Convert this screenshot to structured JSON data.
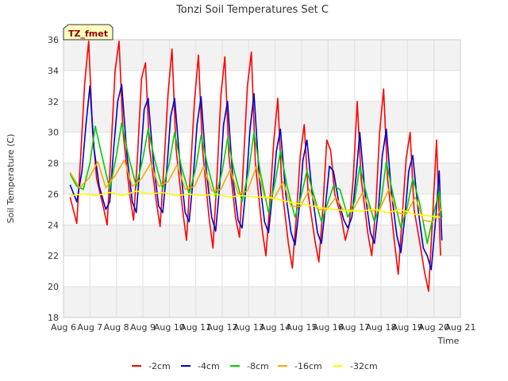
{
  "chart_data": {
    "type": "line",
    "title": "Tonzi Soil Temperatures Set C",
    "xlabel": "Time",
    "ylabel": "Soil Temperature (C)",
    "badge": "TZ_fmet",
    "xlim": [
      6,
      21
    ],
    "ylim": [
      18,
      36
    ],
    "x_ticks": [
      {
        "value": 6,
        "label": "Aug 6"
      },
      {
        "value": 7,
        "label": "Aug 7"
      },
      {
        "value": 8,
        "label": "Aug 8"
      },
      {
        "value": 9,
        "label": "Aug 9"
      },
      {
        "value": 10,
        "label": "Aug 10"
      },
      {
        "value": 11,
        "label": "Aug 11"
      },
      {
        "value": 12,
        "label": "Aug 12"
      },
      {
        "value": 13,
        "label": "Aug 13"
      },
      {
        "value": 14,
        "label": "Aug 14"
      },
      {
        "value": 15,
        "label": "Aug 15"
      },
      {
        "value": 16,
        "label": "Aug 16"
      },
      {
        "value": 17,
        "label": "Aug 17"
      },
      {
        "value": 18,
        "label": "Aug 18"
      },
      {
        "value": 19,
        "label": "Aug 19"
      },
      {
        "value": 20,
        "label": "Aug 20"
      },
      {
        "value": 21,
        "label": "Aug 21"
      }
    ],
    "y_ticks": [
      18,
      20,
      22,
      24,
      26,
      28,
      30,
      32,
      34,
      36
    ],
    "grid": true,
    "legend_position": "bottom",
    "series": [
      {
        "name": "-2cm",
        "color": "#ff0000",
        "x": [
          6.25,
          6.5,
          6.65,
          6.8,
          6.95,
          7.1,
          7.25,
          7.5,
          7.65,
          7.8,
          7.95,
          8.1,
          8.25,
          8.5,
          8.65,
          8.8,
          8.95,
          9.1,
          9.25,
          9.5,
          9.65,
          9.8,
          9.95,
          10.1,
          10.25,
          10.5,
          10.65,
          10.8,
          10.95,
          11.1,
          11.25,
          11.5,
          11.65,
          11.8,
          11.95,
          12.1,
          12.25,
          12.5,
          12.65,
          12.8,
          12.95,
          13.1,
          13.25,
          13.5,
          13.65,
          13.8,
          13.95,
          14.1,
          14.25,
          14.5,
          14.65,
          14.8,
          14.95,
          15.1,
          15.25,
          15.5,
          15.65,
          15.8,
          15.95,
          16.1,
          16.25,
          16.5,
          16.65,
          16.8,
          16.95,
          17.1,
          17.25,
          17.5,
          17.65,
          17.8,
          17.95,
          18.1,
          18.25,
          18.5,
          18.65,
          18.8,
          18.95,
          19.1,
          19.25,
          19.5,
          19.65,
          19.8,
          19.95,
          20.1,
          20.25
        ],
        "y": [
          25.8,
          24.1,
          28.5,
          33.2,
          35.9,
          30,
          27,
          25.2,
          24,
          29,
          34,
          35.9,
          30,
          26,
          24.3,
          28.5,
          33.5,
          34.5,
          29,
          25.6,
          23.9,
          28,
          32.5,
          35.4,
          29,
          25,
          23,
          27.5,
          32,
          35,
          29,
          24.5,
          22.5,
          27,
          32.4,
          34.9,
          28.5,
          24.5,
          23.2,
          28,
          33,
          35.2,
          28,
          23.8,
          22,
          25.5,
          29.5,
          32.2,
          26.5,
          22.8,
          21.2,
          24.5,
          28.5,
          30.5,
          26,
          23,
          21.6,
          25,
          29.5,
          28.8,
          26,
          24.5,
          23,
          24,
          27,
          32,
          27,
          23.5,
          22,
          25,
          30,
          32.8,
          27,
          23,
          20.8,
          24.5,
          28.3,
          30,
          25,
          22.5,
          20.9,
          19.7,
          24.5,
          29.5,
          22
        ]
      },
      {
        "name": "-4cm",
        "color": "#0000cc",
        "x": [
          6.25,
          6.5,
          6.7,
          6.85,
          7.0,
          7.15,
          7.35,
          7.6,
          7.75,
          7.9,
          8.05,
          8.2,
          8.4,
          8.6,
          8.75,
          8.9,
          9.05,
          9.2,
          9.4,
          9.6,
          9.75,
          9.9,
          10.05,
          10.2,
          10.4,
          10.6,
          10.75,
          10.9,
          11.05,
          11.2,
          11.4,
          11.6,
          11.75,
          11.9,
          12.05,
          12.2,
          12.4,
          12.6,
          12.75,
          12.9,
          13.05,
          13.2,
          13.4,
          13.6,
          13.75,
          13.9,
          14.05,
          14.2,
          14.4,
          14.6,
          14.75,
          14.9,
          15.05,
          15.2,
          15.4,
          15.6,
          15.75,
          15.9,
          16.05,
          16.2,
          16.4,
          16.6,
          16.75,
          16.9,
          17.05,
          17.2,
          17.4,
          17.6,
          17.75,
          17.9,
          18.05,
          18.2,
          18.4,
          18.6,
          18.75,
          18.9,
          19.05,
          19.2,
          19.4,
          19.6,
          19.75,
          19.9,
          20.05,
          20.2,
          20.3
        ],
        "y": [
          26.6,
          25.5,
          27.5,
          30.5,
          33,
          29,
          26.5,
          25,
          25.5,
          29,
          32,
          33.1,
          28.5,
          25.5,
          24.8,
          28,
          31.5,
          32.2,
          28,
          25.2,
          24.8,
          27.5,
          31,
          32.2,
          28,
          24.8,
          24.2,
          27,
          30.5,
          32.3,
          27.5,
          24.5,
          23.6,
          26.5,
          30.5,
          32,
          27,
          24.3,
          23.8,
          26.5,
          30.2,
          32.5,
          27,
          24.2,
          23.5,
          26,
          28.8,
          30.2,
          26,
          23.5,
          22.7,
          25,
          28.2,
          29.5,
          26,
          23.5,
          22.8,
          25.2,
          27.8,
          27.5,
          25.5,
          24.3,
          23.8,
          24.5,
          27,
          30,
          26,
          23.5,
          22.8,
          25,
          28.5,
          30.2,
          26,
          23.3,
          22.2,
          24.5,
          27.5,
          28.5,
          25,
          22.5,
          22,
          21.1,
          24,
          27.5,
          23
        ]
      },
      {
        "name": "-8cm",
        "color": "#00cc00",
        "x": [
          6.25,
          6.5,
          6.75,
          7.0,
          7.2,
          7.45,
          7.75,
          8.0,
          8.2,
          8.45,
          8.75,
          9.0,
          9.2,
          9.45,
          9.75,
          10.0,
          10.2,
          10.45,
          10.75,
          11.0,
          11.2,
          11.45,
          11.75,
          12.0,
          12.2,
          12.45,
          12.75,
          13.0,
          13.2,
          13.45,
          13.75,
          14.0,
          14.2,
          14.45,
          14.75,
          15.0,
          15.2,
          15.45,
          15.75,
          16.0,
          16.2,
          16.45,
          16.75,
          17.0,
          17.2,
          17.45,
          17.75,
          18.0,
          18.2,
          18.45,
          18.75,
          19.0,
          19.2,
          19.45,
          19.75,
          20.0,
          20.2,
          20.3
        ],
        "y": [
          27.3,
          26.5,
          26.3,
          28,
          30.4,
          28.5,
          26.3,
          28.5,
          30.6,
          28.5,
          26.5,
          28.3,
          30.2,
          28.2,
          26.3,
          28,
          30,
          27.8,
          26,
          27.7,
          29.8,
          27.8,
          25.8,
          27.5,
          29.6,
          27.5,
          25.5,
          27.5,
          30,
          27.3,
          24.8,
          26.8,
          28.8,
          26.5,
          24.5,
          26,
          27.5,
          26,
          24.2,
          25.5,
          26.5,
          26.3,
          24.5,
          25.5,
          27.8,
          26,
          24.2,
          25.5,
          28.1,
          26,
          23.8,
          25.2,
          27,
          25.5,
          22.8,
          24.8,
          26.2,
          24.5
        ]
      },
      {
        "name": "-16cm",
        "color": "#ffa500",
        "x": [
          6.25,
          6.6,
          6.95,
          7.3,
          7.6,
          7.95,
          8.3,
          8.6,
          8.95,
          9.3,
          9.6,
          9.95,
          10.3,
          10.6,
          10.95,
          11.3,
          11.6,
          11.95,
          12.3,
          12.6,
          12.95,
          13.3,
          13.6,
          13.95,
          14.3,
          14.6,
          14.95,
          15.3,
          15.6,
          15.95,
          16.3,
          16.6,
          16.95,
          17.3,
          17.6,
          17.95,
          18.3,
          18.6,
          18.95,
          19.3,
          19.6,
          19.95,
          20.3
        ],
        "y": [
          27.4,
          26.4,
          27,
          28.1,
          26.4,
          27.2,
          28.2,
          26.5,
          27,
          28,
          26.5,
          26.8,
          27.9,
          26.3,
          26.5,
          27.8,
          26.2,
          26.3,
          27.6,
          26,
          26.2,
          27.8,
          25.8,
          25.7,
          26.8,
          25.2,
          25.2,
          26.3,
          25,
          25,
          25.8,
          24.9,
          25,
          26.1,
          24.9,
          25,
          26.3,
          24.8,
          24.7,
          25.8,
          24.3,
          24.2,
          25.1
        ]
      },
      {
        "name": "-32cm",
        "color": "#ffff00",
        "x": [
          6.25,
          6.75,
          7.25,
          7.75,
          8.25,
          8.75,
          9.25,
          9.75,
          10.25,
          10.75,
          11.25,
          11.75,
          12.25,
          12.75,
          13.25,
          13.75,
          14.25,
          14.75,
          15.25,
          15.75,
          16.25,
          16.75,
          17.25,
          17.75,
          18.25,
          18.75,
          19.25,
          19.75,
          20.25
        ],
        "y": [
          25.9,
          26,
          25.9,
          26.1,
          25.9,
          26.2,
          26.0,
          26.1,
          25.9,
          26.0,
          25.9,
          26.0,
          25.8,
          25.9,
          25.8,
          25.8,
          25.6,
          25.4,
          25.3,
          25.1,
          25.0,
          24.9,
          24.9,
          25.0,
          24.8,
          25.0,
          24.7,
          24.6,
          24.5
        ]
      }
    ]
  }
}
